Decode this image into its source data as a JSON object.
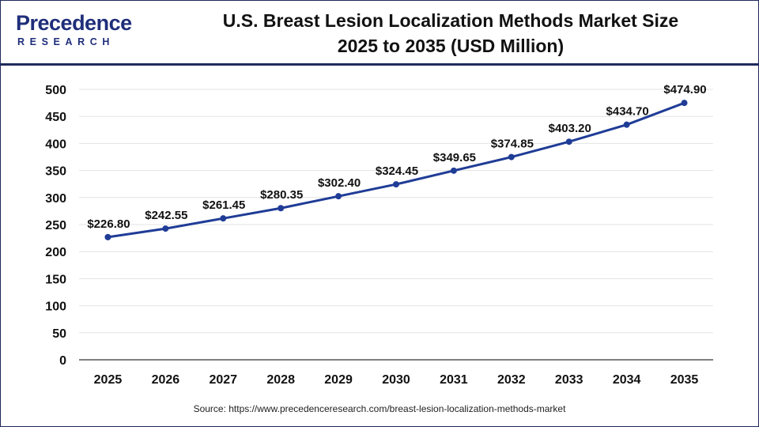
{
  "brand": {
    "name": "Precedence",
    "sub": "RESEARCH"
  },
  "chart_data": {
    "type": "line",
    "title": [
      "U.S. Breast Lesion Localization Methods Market Size",
      "2025 to 2035 (USD Million)"
    ],
    "xlabel": "",
    "ylabel": "",
    "categories": [
      "2025",
      "2026",
      "2027",
      "2028",
      "2029",
      "2030",
      "2031",
      "2032",
      "2033",
      "2034",
      "2035"
    ],
    "values": [
      226.8,
      242.55,
      261.45,
      280.35,
      302.4,
      324.45,
      349.65,
      374.85,
      403.2,
      434.7,
      474.9
    ],
    "data_labels": [
      "$226.80",
      "$242.55",
      "$261.45",
      "$280.35",
      "$302.40",
      "$324.45",
      "$349.65",
      "$374.85",
      "$403.20",
      "$434.70",
      "$474.90"
    ],
    "ylim": [
      0,
      500
    ],
    "yticks": [
      0,
      50,
      100,
      150,
      200,
      250,
      300,
      350,
      400,
      450,
      500
    ],
    "grid": true,
    "legend": "none",
    "line_color": "#1f3c96"
  },
  "source": "Source: https://www.precedenceresearch.com/breast-lesion-localization-methods-market"
}
